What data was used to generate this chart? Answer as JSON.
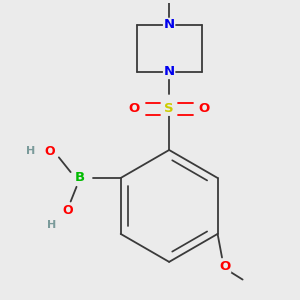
{
  "background_color": "#ebebeb",
  "atom_colors": {
    "C": "#3a3a3a",
    "N": "#0000ee",
    "O": "#ff0000",
    "S": "#cccc00",
    "B": "#00bb00",
    "H": "#7a9a9a"
  },
  "bond_color": "#3a3a3a",
  "bond_width": 1.3,
  "font_size": 9,
  "fig_size": [
    3.0,
    3.0
  ],
  "dpi": 100
}
